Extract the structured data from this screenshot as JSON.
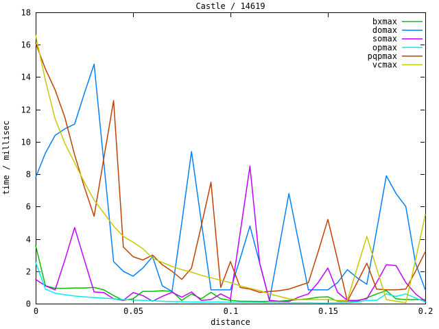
{
  "window": {
    "background": "#ffffff",
    "axis_color": "#000000"
  },
  "chart_data": {
    "type": "line",
    "title": "Castle / 14619",
    "xlabel": "distance",
    "ylabel": "time / millisec",
    "xlim": [
      0,
      0.2
    ],
    "ylim": [
      0,
      18
    ],
    "x_ticks": [
      0,
      0.05,
      0.1,
      0.15,
      0.2
    ],
    "x_tick_labels": [
      "0",
      "0.05",
      "0.1",
      "0.15",
      "0.2"
    ],
    "y_ticks": [
      0,
      2,
      4,
      6,
      8,
      10,
      12,
      14,
      16,
      18
    ],
    "y_tick_labels": [
      "0",
      "2",
      "4",
      "6",
      "8",
      "10",
      "12",
      "14",
      "16",
      "18"
    ],
    "grid": false,
    "legend_position": "top-right-inside",
    "x": [
      0,
      0.005,
      0.01,
      0.015,
      0.02,
      0.025,
      0.03,
      0.035,
      0.04,
      0.045,
      0.05,
      0.055,
      0.06,
      0.065,
      0.07,
      0.075,
      0.08,
      0.085,
      0.09,
      0.095,
      0.1,
      0.105,
      0.11,
      0.115,
      0.12,
      0.125,
      0.13,
      0.135,
      0.14,
      0.145,
      0.15,
      0.155,
      0.16,
      0.165,
      0.17,
      0.175,
      0.18,
      0.185,
      0.19,
      0.195,
      0.2
    ],
    "series": [
      {
        "name": "bxmax",
        "color": "#00c000",
        "values": [
          3.6,
          1.1,
          0.95,
          0.95,
          0.97,
          0.97,
          1.0,
          0.85,
          0.5,
          0.2,
          0.3,
          0.76,
          0.76,
          0.8,
          0.76,
          0.2,
          0.6,
          0.3,
          0.7,
          0.3,
          0.2,
          0.15,
          0.15,
          0.13,
          0.15,
          0.15,
          0.2,
          0.25,
          0.3,
          0.4,
          0.42,
          0.15,
          0.15,
          0.15,
          0.35,
          0.6,
          0.8,
          0.3,
          0.25,
          0.25,
          0.25
        ]
      },
      {
        "name": "domax",
        "color": "#0080ff",
        "values": [
          7.8,
          9.3,
          10.4,
          10.8,
          11.1,
          13.0,
          14.8,
          8.7,
          2.6,
          2.0,
          1.7,
          2.2,
          2.9,
          1.1,
          0.76,
          5.0,
          9.4,
          5.1,
          0.85,
          0.85,
          0.85,
          2.8,
          4.8,
          2.5,
          0.2,
          3.5,
          6.8,
          3.8,
          0.85,
          0.85,
          0.85,
          1.3,
          2.1,
          1.6,
          1.2,
          4.5,
          7.9,
          6.8,
          6.0,
          2.5,
          0.85
        ]
      },
      {
        "name": "somax",
        "color": "#c000ff",
        "values": [
          1.5,
          1.1,
          0.85,
          2.7,
          4.7,
          2.7,
          0.72,
          0.68,
          0.3,
          0.2,
          0.68,
          0.5,
          0.15,
          0.45,
          0.7,
          0.4,
          0.72,
          0.2,
          0.25,
          0.6,
          0.3,
          4.4,
          8.5,
          2.5,
          0.2,
          0.15,
          0.13,
          0.4,
          0.6,
          1.3,
          2.2,
          0.7,
          0.2,
          0.2,
          0.3,
          1.3,
          2.4,
          2.35,
          1.3,
          0.6,
          0.15
        ]
      },
      {
        "name": "opmax",
        "color": "#00eeee",
        "values": [
          2.55,
          0.9,
          0.65,
          0.55,
          0.47,
          0.42,
          0.38,
          0.34,
          0.3,
          0.25,
          0.22,
          0.2,
          0.18,
          0.15,
          0.13,
          0.12,
          0.1,
          0.1,
          0.1,
          0.1,
          0.08,
          0.08,
          0.08,
          0.08,
          0.06,
          0.06,
          0.05,
          0.05,
          0.05,
          0.04,
          0.04,
          0.05,
          0.05,
          0.1,
          0.2,
          0.2,
          0.6,
          0.45,
          0.6,
          0.35,
          0.1
        ]
      },
      {
        "name": "pqpmax",
        "color": "#c04000",
        "values": [
          16.1,
          14.5,
          13.2,
          11.5,
          9.2,
          7.2,
          5.4,
          9.0,
          12.55,
          3.5,
          2.9,
          2.7,
          3.0,
          2.4,
          2.0,
          1.5,
          2.2,
          4.8,
          7.5,
          1.0,
          2.6,
          1.0,
          0.9,
          0.7,
          0.75,
          0.8,
          0.9,
          1.1,
          1.3,
          3.2,
          5.2,
          2.7,
          0.15,
          1.3,
          2.5,
          0.9,
          0.85,
          0.85,
          0.9,
          2.0,
          3.2
        ]
      },
      {
        "name": "vcmax",
        "color": "#c8c800",
        "values": [
          16.6,
          13.8,
          11.4,
          9.9,
          8.7,
          7.5,
          6.4,
          5.6,
          4.8,
          4.15,
          3.8,
          3.4,
          2.8,
          2.55,
          2.3,
          2.1,
          1.95,
          1.75,
          1.6,
          1.45,
          1.3,
          1.1,
          0.95,
          0.8,
          0.6,
          0.45,
          0.3,
          0.25,
          0.25,
          0.25,
          0.25,
          0.2,
          0.2,
          2.2,
          4.15,
          2.2,
          0.25,
          0.15,
          0.05,
          2.7,
          5.5
        ]
      }
    ]
  }
}
